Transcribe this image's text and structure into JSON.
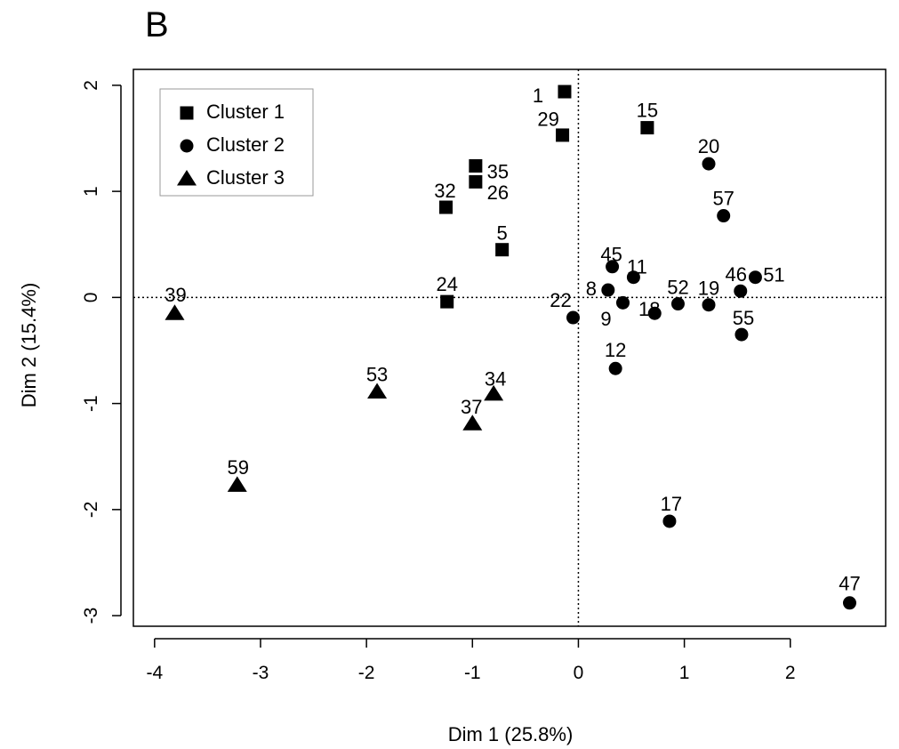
{
  "panel_label": "B",
  "chart_data": {
    "type": "scatter",
    "title": "",
    "xlabel": "Dim 1 (25.8%)",
    "ylabel": "Dim 2 (15.4%)",
    "xlim": [
      -4.2,
      2.9
    ],
    "ylim": [
      -3.1,
      2.15
    ],
    "xticks": [
      -4,
      -3,
      -2,
      -1,
      0,
      1,
      2
    ],
    "yticks": [
      -3,
      -2,
      -1,
      0,
      1,
      2
    ],
    "xtick_labels": [
      "-4",
      "-3",
      "-2",
      "-1",
      "0",
      "1",
      "2"
    ],
    "ytick_labels": [
      "-3",
      "-2",
      "-1",
      "0",
      "1",
      "2"
    ],
    "reference_lines": {
      "x": 0,
      "y": 0,
      "style": "dotted"
    },
    "grid": false,
    "legend": {
      "position": "top-left",
      "entries": [
        {
          "label": "Cluster 1",
          "marker": "square"
        },
        {
          "label": "Cluster 2",
          "marker": "circle"
        },
        {
          "label": "Cluster 3",
          "marker": "triangle"
        }
      ]
    },
    "series": [
      {
        "name": "Cluster 1",
        "marker": "square",
        "points": [
          {
            "label": "1",
            "x": -0.13,
            "y": 1.94
          },
          {
            "label": "29",
            "x": -0.15,
            "y": 1.53
          },
          {
            "label": "15",
            "x": 0.65,
            "y": 1.6
          },
          {
            "label": "35",
            "x": -0.97,
            "y": 1.24
          },
          {
            "label": "26",
            "x": -0.97,
            "y": 1.09
          },
          {
            "label": "32",
            "x": -1.25,
            "y": 0.85
          },
          {
            "label": "5",
            "x": -0.72,
            "y": 0.45
          },
          {
            "label": "24",
            "x": -1.24,
            "y": -0.04
          }
        ]
      },
      {
        "name": "Cluster 2",
        "marker": "circle",
        "points": [
          {
            "label": "20",
            "x": 1.23,
            "y": 1.26
          },
          {
            "label": "57",
            "x": 1.37,
            "y": 0.77
          },
          {
            "label": "45",
            "x": 0.32,
            "y": 0.29
          },
          {
            "label": "11",
            "x": 0.52,
            "y": 0.19
          },
          {
            "label": "8",
            "x": 0.28,
            "y": 0.07
          },
          {
            "label": "9",
            "x": 0.42,
            "y": -0.05
          },
          {
            "label": "22",
            "x": -0.05,
            "y": -0.19
          },
          {
            "label": "18",
            "x": 0.72,
            "y": -0.15
          },
          {
            "label": "52",
            "x": 0.94,
            "y": -0.06
          },
          {
            "label": "19",
            "x": 1.23,
            "y": -0.07
          },
          {
            "label": "46",
            "x": 1.53,
            "y": 0.06
          },
          {
            "label": "51",
            "x": 1.67,
            "y": 0.19
          },
          {
            "label": "55",
            "x": 1.54,
            "y": -0.35
          },
          {
            "label": "12",
            "x": 0.35,
            "y": -0.67
          },
          {
            "label": "17",
            "x": 0.86,
            "y": -2.11
          },
          {
            "label": "47",
            "x": 2.56,
            "y": -2.88
          }
        ]
      },
      {
        "name": "Cluster 3",
        "marker": "triangle",
        "points": [
          {
            "label": "39",
            "x": -3.81,
            "y": -0.15
          },
          {
            "label": "53",
            "x": -1.9,
            "y": -0.89
          },
          {
            "label": "34",
            "x": -0.8,
            "y": -0.91
          },
          {
            "label": "37",
            "x": -1.0,
            "y": -1.19
          },
          {
            "label": "59",
            "x": -3.22,
            "y": -1.77
          }
        ]
      }
    ]
  }
}
